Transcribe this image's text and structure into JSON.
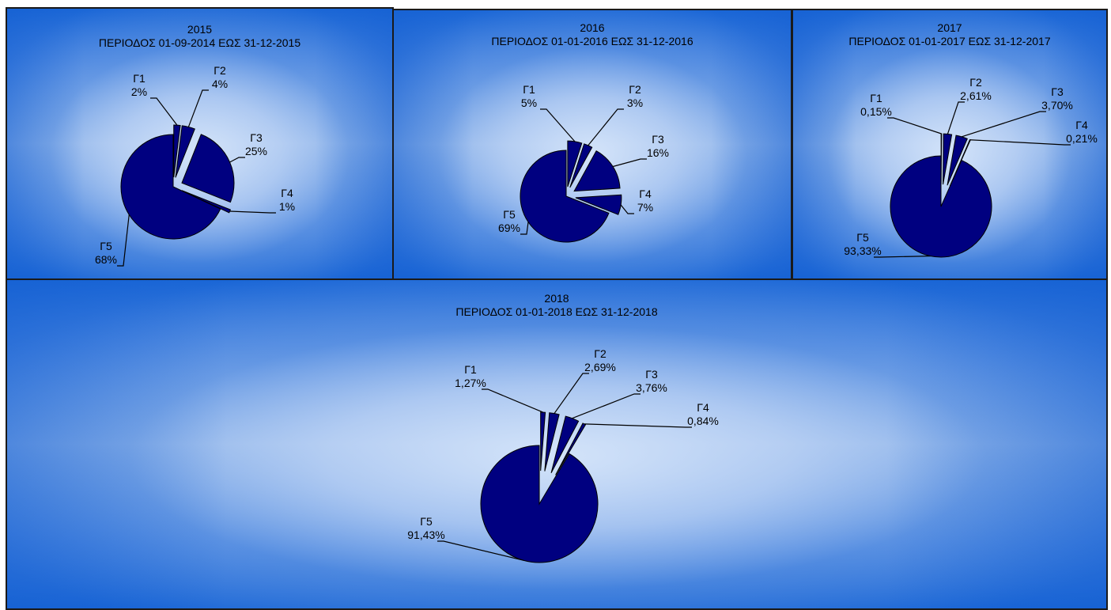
{
  "chart_data": [
    {
      "type": "pie",
      "title": "2015",
      "subtitle": "ΠΕΡΙΟΔΟΣ 01-09-2014 ΕΩΣ 31-12-2015",
      "categories": [
        "Γ1",
        "Γ2",
        "Γ3",
        "Γ4",
        "Γ5"
      ],
      "values": [
        2,
        4,
        25,
        1,
        68
      ],
      "value_labels": [
        "2%",
        "4%",
        "25%",
        "1%",
        "68%"
      ],
      "exploded": true,
      "color": "#000080"
    },
    {
      "type": "pie",
      "title": "2016",
      "subtitle": "ΠΕΡΙΟΔΟΣ 01-01-2016 ΕΩΣ 31-12-2016",
      "categories": [
        "Γ1",
        "Γ2",
        "Γ3",
        "Γ4",
        "Γ5"
      ],
      "values": [
        5,
        3,
        16,
        7,
        69
      ],
      "value_labels": [
        "5%",
        "3%",
        "16%",
        "7%",
        "69%"
      ],
      "exploded": true,
      "color": "#000080"
    },
    {
      "type": "pie",
      "title": "2017",
      "subtitle": "ΠΕΡΙΟΔΟΣ 01-01-2017 ΕΩΣ 31-12-2017",
      "categories": [
        "Γ1",
        "Γ2",
        "Γ3",
        "Γ4",
        "Γ5"
      ],
      "values": [
        0.15,
        2.61,
        3.7,
        0.21,
        93.33
      ],
      "value_labels": [
        "0,15%",
        "2,61%",
        "3,70%",
        "0,21%",
        "93,33%"
      ],
      "exploded": true,
      "color": "#000080"
    },
    {
      "type": "pie",
      "title": "2018",
      "subtitle": "ΠΕΡΙΟΔΟΣ 01-01-2018 ΕΩΣ 31-12-2018",
      "categories": [
        "Γ1",
        "Γ2",
        "Γ3",
        "Γ4",
        "Γ5"
      ],
      "values": [
        1.27,
        2.69,
        3.76,
        0.84,
        91.43
      ],
      "value_labels": [
        "1,27%",
        "2,69%",
        "3,76%",
        "0,84%",
        "91,43%"
      ],
      "exploded": true,
      "color": "#000080"
    }
  ]
}
